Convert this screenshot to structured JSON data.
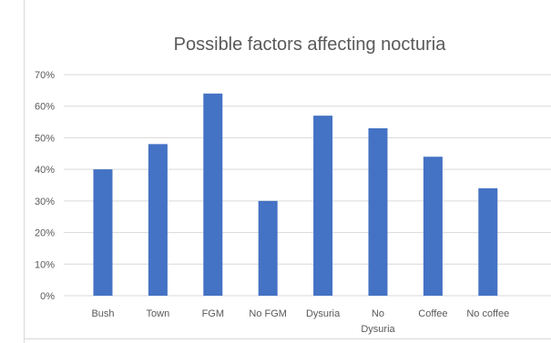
{
  "chart_data": {
    "type": "bar",
    "title": "Possible factors affecting nocturia",
    "xlabel": "",
    "ylabel": "",
    "categories": [
      "Bush",
      "Town",
      "FGM",
      "No FGM",
      "Dysuria",
      "No Dysuria",
      "Coffee",
      "No coffee"
    ],
    "category_lines": [
      [
        "Bush"
      ],
      [
        "Town"
      ],
      [
        "FGM"
      ],
      [
        "No FGM"
      ],
      [
        "Dysuria"
      ],
      [
        "No",
        "Dysuria"
      ],
      [
        "Coffee"
      ],
      [
        "No coffee"
      ]
    ],
    "values": [
      40,
      48,
      64,
      30,
      57,
      53,
      44,
      34
    ],
    "y_ticks": [
      "0%",
      "10%",
      "20%",
      "30%",
      "40%",
      "50%",
      "60%",
      "70%"
    ],
    "ylim": [
      0,
      70
    ],
    "grid": true,
    "legend": "none",
    "bar_color": "#4472c4",
    "grid_color": "#d9d9d9"
  }
}
